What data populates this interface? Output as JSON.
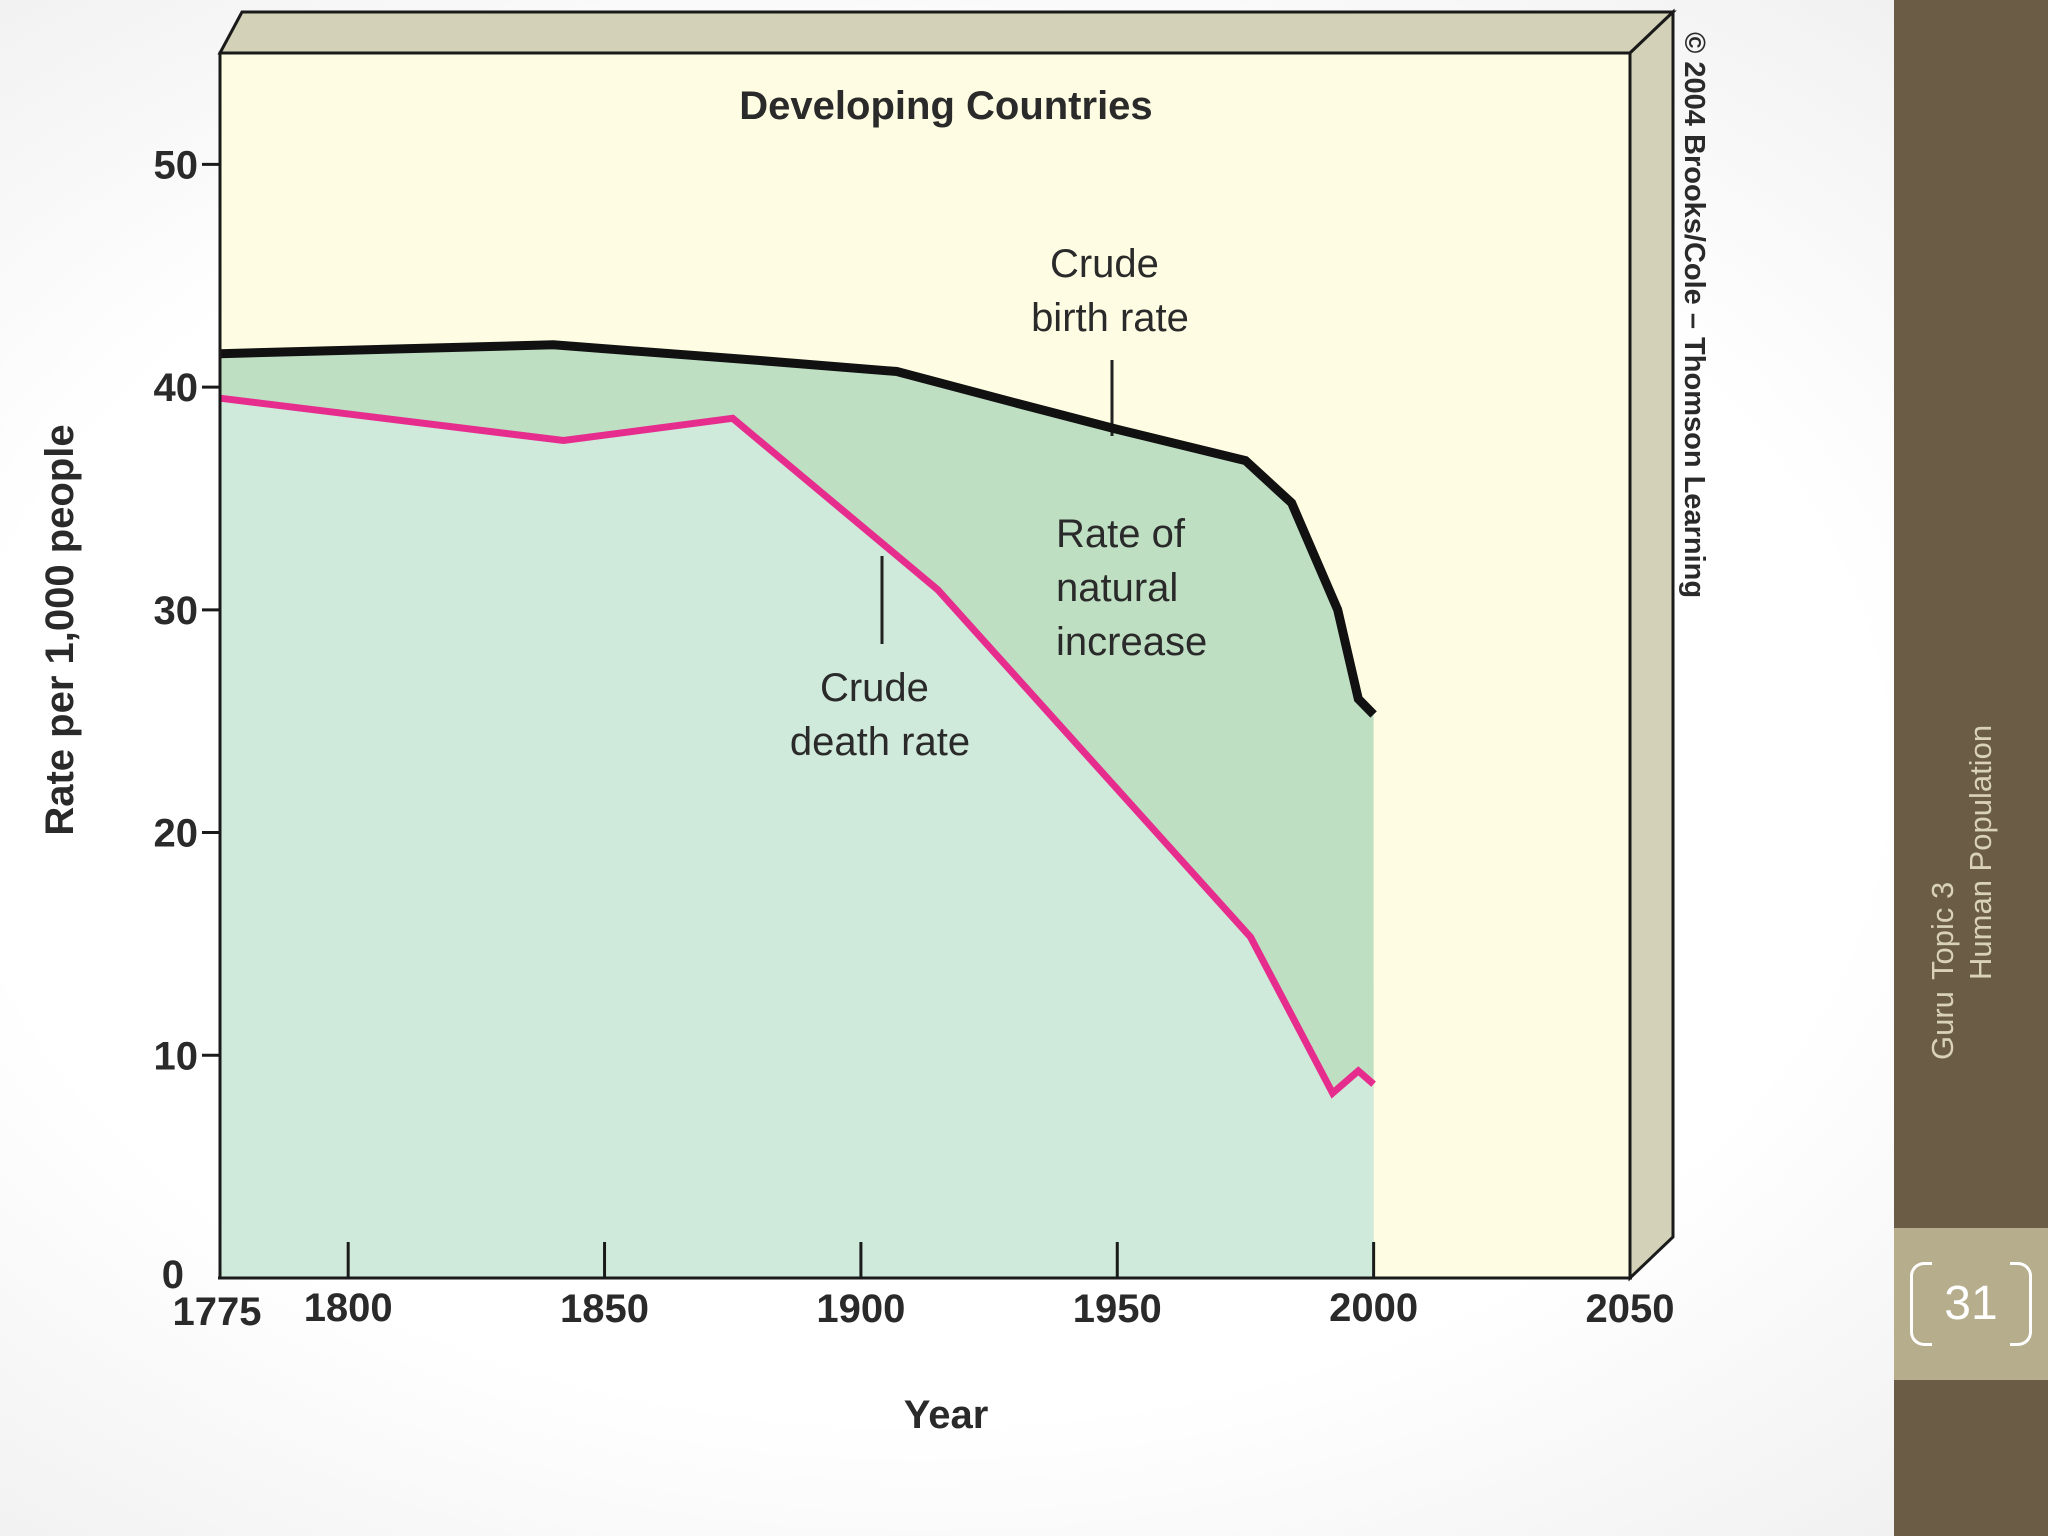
{
  "chart_data": {
    "type": "area",
    "title": "Developing Countries",
    "xlabel": "Year",
    "ylabel": "Rate per 1,000 people",
    "xlim": [
      1775,
      2050
    ],
    "ylim": [
      0,
      55
    ],
    "xticks": [
      1775,
      1800,
      1850,
      1900,
      1950,
      2000,
      2050
    ],
    "yticks": [
      0,
      10,
      20,
      30,
      40,
      50
    ],
    "grid": false,
    "series": [
      {
        "name": "Crude birth rate",
        "color": "#111111",
        "points": [
          [
            1775,
            41.5
          ],
          [
            1840,
            41.9
          ],
          [
            1880,
            41.2
          ],
          [
            1907,
            40.7
          ],
          [
            1930,
            39.3
          ],
          [
            1950,
            38.1
          ],
          [
            1975,
            36.7
          ],
          [
            1984,
            34.8
          ],
          [
            1993,
            30.0
          ],
          [
            1997,
            26.0
          ],
          [
            2000,
            25.3
          ]
        ]
      },
      {
        "name": "Crude death rate",
        "color": "#e62d8e",
        "points": [
          [
            1775,
            39.5
          ],
          [
            1842,
            37.6
          ],
          [
            1875,
            38.6
          ],
          [
            1915,
            30.9
          ],
          [
            1976,
            15.3
          ],
          [
            1992,
            8.3
          ],
          [
            1997,
            9.3
          ],
          [
            2000,
            8.7
          ]
        ]
      }
    ],
    "fills": {
      "natural_increase": "#bfdfc3",
      "below_death": "#cfe9da",
      "plot_background": "#fefde3",
      "frame_side": "#d3d1b8"
    },
    "annotations": {
      "birth_label": [
        "Crude",
        "birth rate"
      ],
      "death_label": [
        "Crude",
        "death rate"
      ],
      "increase_label": [
        "Rate of",
        "natural",
        "increase"
      ]
    },
    "credit": "© 2004 Brooks/Cole – Thomson Learning"
  },
  "sidebar": {
    "line1": "Guru",
    "line2": "Topic 3",
    "line3": "Human Population",
    "page_number": "31"
  }
}
